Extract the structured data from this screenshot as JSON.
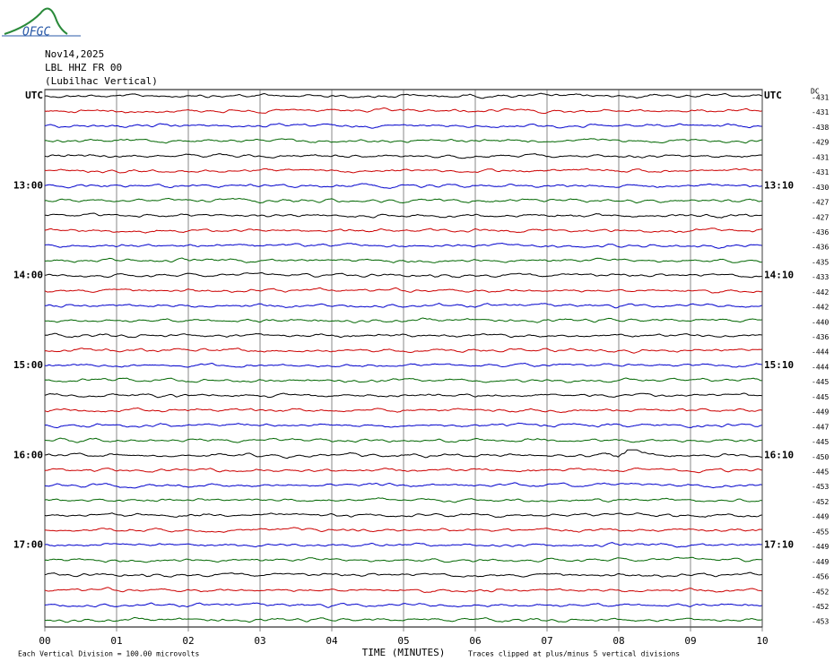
{
  "chart_data": {
    "type": "helicorder",
    "logo_text": "OFGC",
    "date": "Nov14,2025",
    "station": "LBL HHZ FR 00",
    "location": "(Lubilhac Vertical)",
    "dc_header": "DC",
    "xlabel": "TIME (MINUTES)",
    "scale_note": "Each Vertical Division =  100.00 microvolts",
    "clip_note": "Traces clipped at plus/minus 5 vertical divisions",
    "xlim": [
      0,
      10
    ],
    "xticks": [
      {
        "value": 0,
        "label": "00"
      },
      {
        "value": 1,
        "label": "01"
      },
      {
        "value": 2,
        "label": "02"
      },
      {
        "value": 3,
        "label": "03"
      },
      {
        "value": 4,
        "label": "04"
      },
      {
        "value": 5,
        "label": "05"
      },
      {
        "value": 6,
        "label": "06"
      },
      {
        "value": 7,
        "label": "07"
      },
      {
        "value": 8,
        "label": "08"
      },
      {
        "value": 9,
        "label": "09"
      },
      {
        "value": 10,
        "label": "10"
      }
    ],
    "colors": [
      "#000000",
      "#cc0000",
      "#0000cc",
      "#006600"
    ],
    "left_labels": [
      "UTC",
      null,
      null,
      null,
      null,
      null,
      "13:00",
      null,
      null,
      null,
      null,
      null,
      "14:00",
      null,
      null,
      null,
      null,
      null,
      "15:00",
      null,
      null,
      null,
      null,
      null,
      "16:00",
      null,
      null,
      null,
      null,
      null,
      "17:00",
      null,
      null,
      null,
      null,
      null
    ],
    "right_labels": [
      "UTC",
      null,
      null,
      null,
      null,
      null,
      "13:10",
      null,
      null,
      null,
      null,
      null,
      "14:10",
      null,
      null,
      null,
      null,
      null,
      "15:10",
      null,
      null,
      null,
      null,
      null,
      "16:10",
      null,
      null,
      null,
      null,
      null,
      "17:10",
      null,
      null,
      null,
      null,
      null
    ],
    "dc_offsets": [
      -431,
      -431,
      -438,
      -429,
      -431,
      -431,
      -430,
      -427,
      -427,
      -436,
      -436,
      -435,
      -433,
      -442,
      -442,
      -440,
      -436,
      -444,
      -444,
      -445,
      -445,
      -449,
      -447,
      -445,
      -450,
      -445,
      -453,
      -452,
      -449,
      -455,
      -449,
      -449,
      -456,
      -452,
      -452,
      -453
    ]
  }
}
